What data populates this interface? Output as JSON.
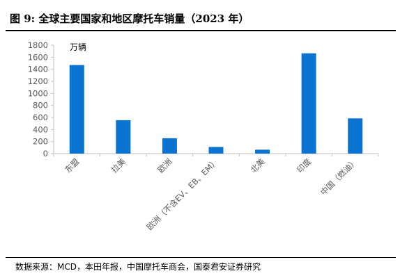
{
  "title": "图 9:  全球主要国家和地区摩托车销量（2023 年）",
  "source": "数据来源：MCD，本田年报，中国摩托车商会，国泰君安证券研究",
  "colors": {
    "bar": "#0B73D1",
    "axis": "#BFBFBF",
    "text": "#595959"
  },
  "chart_data": {
    "type": "bar",
    "unit_label": "万辆",
    "categories": [
      "东盟",
      "拉美",
      "欧洲",
      "欧洲（不含EV、EB、EM）",
      "北美",
      "印度",
      "中国（燃油）"
    ],
    "values": [
      1470,
      555,
      255,
      110,
      65,
      1665,
      585
    ],
    "ylim": [
      0,
      1800
    ],
    "yticks": [
      0,
      200,
      400,
      600,
      800,
      1000,
      1200,
      1400,
      1600,
      1800
    ],
    "grid": false,
    "legend": "none"
  }
}
